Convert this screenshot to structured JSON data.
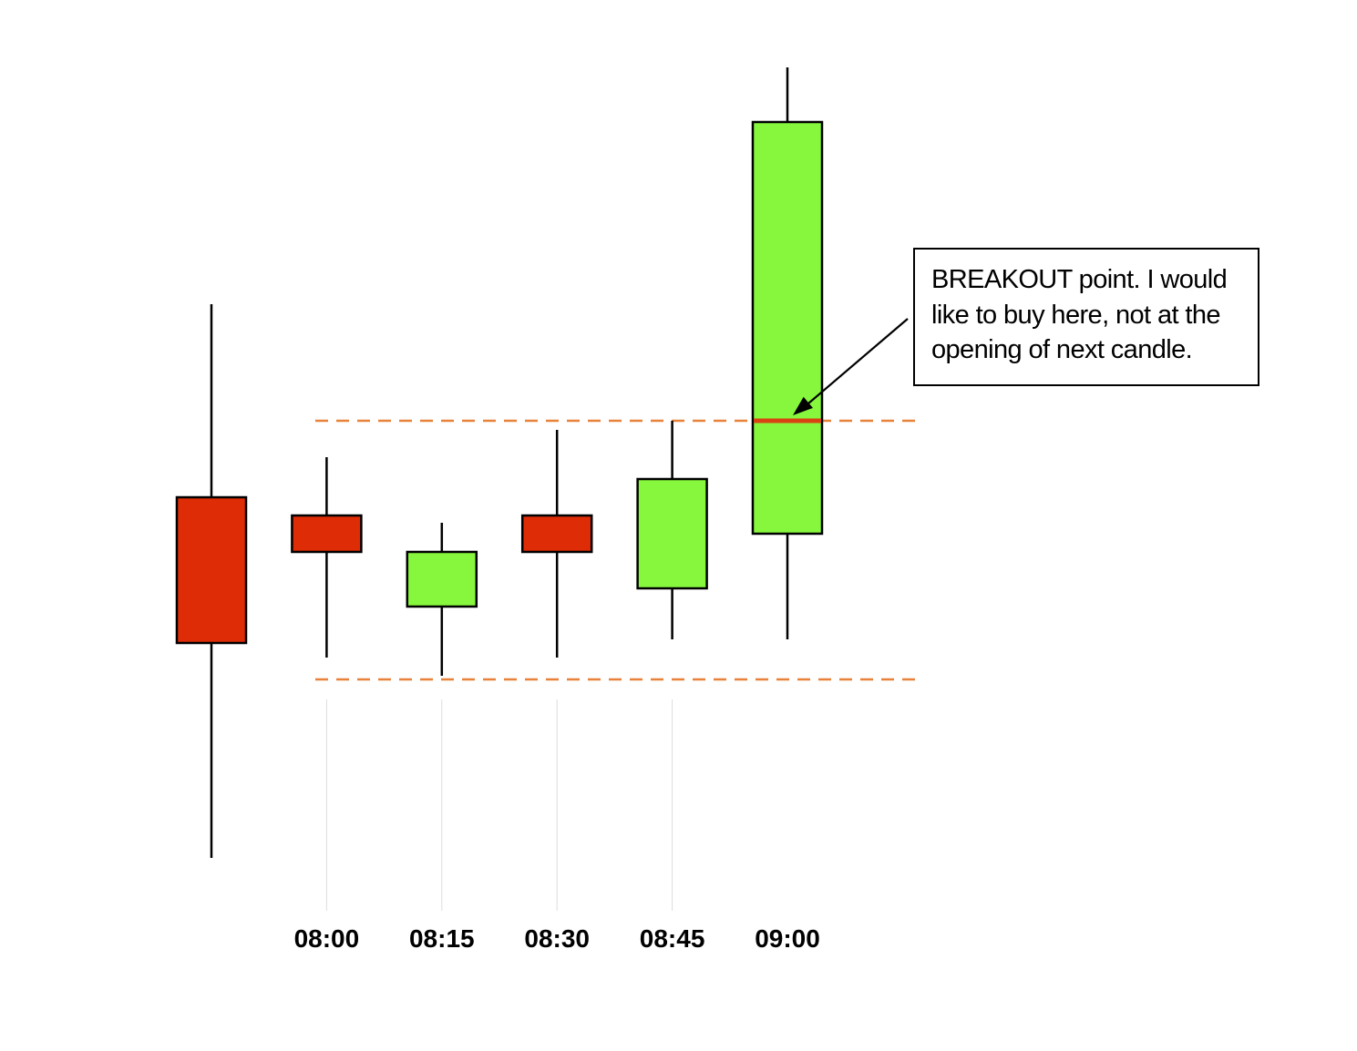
{
  "chart_data": {
    "type": "candlestick",
    "categories": [
      "",
      "08:00",
      "08:15",
      "08:30",
      "08:45",
      "09:00"
    ],
    "candles": [
      {
        "label": "",
        "open": 5.47,
        "high": 6.53,
        "low": 3.49,
        "close": 4.67,
        "direction": "down"
      },
      {
        "label": "08:00",
        "open": 5.37,
        "high": 5.69,
        "low": 4.59,
        "close": 5.17,
        "direction": "down"
      },
      {
        "label": "08:15",
        "open": 4.87,
        "high": 5.33,
        "low": 4.49,
        "close": 5.17,
        "direction": "up"
      },
      {
        "label": "08:30",
        "open": 5.37,
        "high": 5.84,
        "low": 4.59,
        "close": 5.17,
        "direction": "down"
      },
      {
        "label": "08:45",
        "open": 4.97,
        "high": 5.89,
        "low": 4.69,
        "close": 5.57,
        "direction": "up"
      },
      {
        "label": "09:00",
        "open": 5.27,
        "high": 7.83,
        "low": 4.69,
        "close": 7.53,
        "direction": "up"
      }
    ],
    "resistance_level": 5.89,
    "support_level": 4.47,
    "breakout_level": 5.89,
    "ylim": [
      3.0,
      8.0
    ],
    "grid": false,
    "title": "",
    "xlabel": "",
    "ylabel": "",
    "annotation": {
      "lines": [
        "BREAKOUT point. I would",
        "like to buy here, not at the",
        "opening of next candle."
      ]
    },
    "colors": {
      "up": "#87f73d",
      "down": "#de2c06",
      "level_line": "#e8823a",
      "breakout_mark": "#d94312",
      "guide_line": "#dddddd",
      "outline": "#000000"
    }
  }
}
